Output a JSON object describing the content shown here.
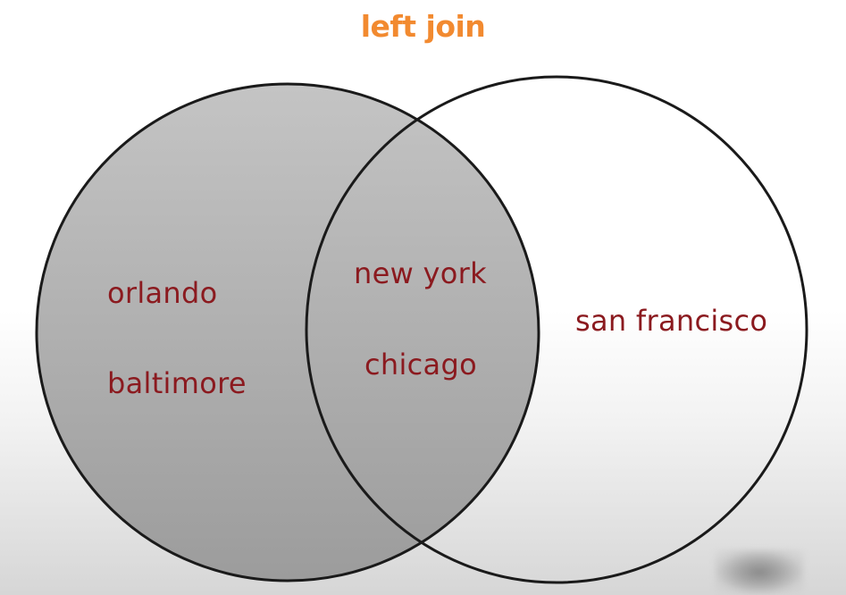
{
  "title": "left join",
  "colors": {
    "title": "#f28a30",
    "label": "#8b1a1f",
    "shaded_fill": "#ababab",
    "outline": "#1a1a1a"
  },
  "left_set": {
    "shaded": true,
    "items": [
      "orlando",
      "baltimore"
    ]
  },
  "intersection": {
    "shaded": true,
    "items": [
      "new york",
      "chicago"
    ]
  },
  "right_set": {
    "shaded": false,
    "items": [
      "san francisco"
    ]
  }
}
